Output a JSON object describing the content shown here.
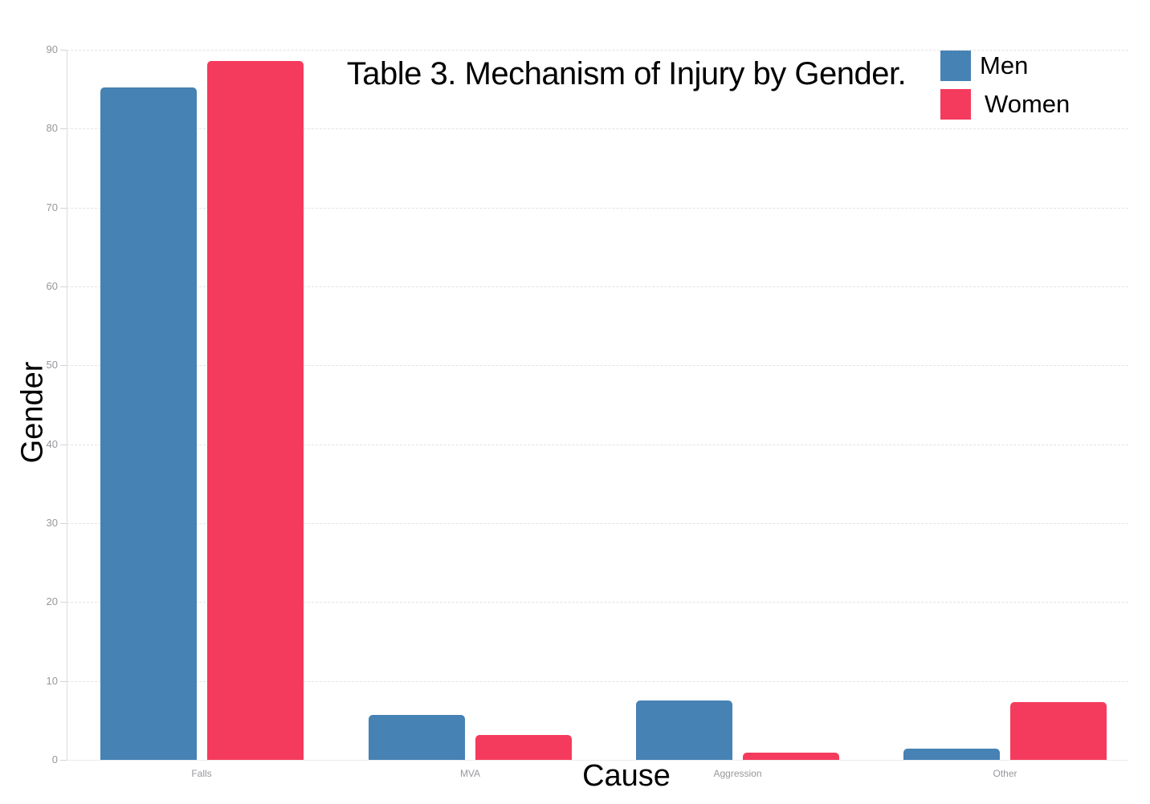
{
  "chart_data": {
    "type": "bar",
    "title": "Table 3. Mechanism of Injury by Gender.",
    "xlabel": "Cause",
    "ylabel": "Gender",
    "categories": [
      "Falls",
      "MVA",
      "Aggression",
      "Other"
    ],
    "series": [
      {
        "name": "Men",
        "color": "#4682B4",
        "values": [
          85.2,
          5.7,
          7.5,
          1.4
        ]
      },
      {
        "name": "Women",
        "color": "#F53B5D",
        "values": [
          88.6,
          3.2,
          0.9,
          7.3
        ]
      }
    ],
    "ylim": [
      0,
      90
    ],
    "yticks": [
      0,
      10,
      20,
      30,
      40,
      50,
      60,
      70,
      80,
      90
    ],
    "grid": "horizontal-dashed",
    "legend_position": "top-right"
  },
  "colors": {
    "grid": "#E3E3E7",
    "axis_line": "#DCDCE0",
    "tick_label": "#97979C",
    "text": "#000000"
  }
}
